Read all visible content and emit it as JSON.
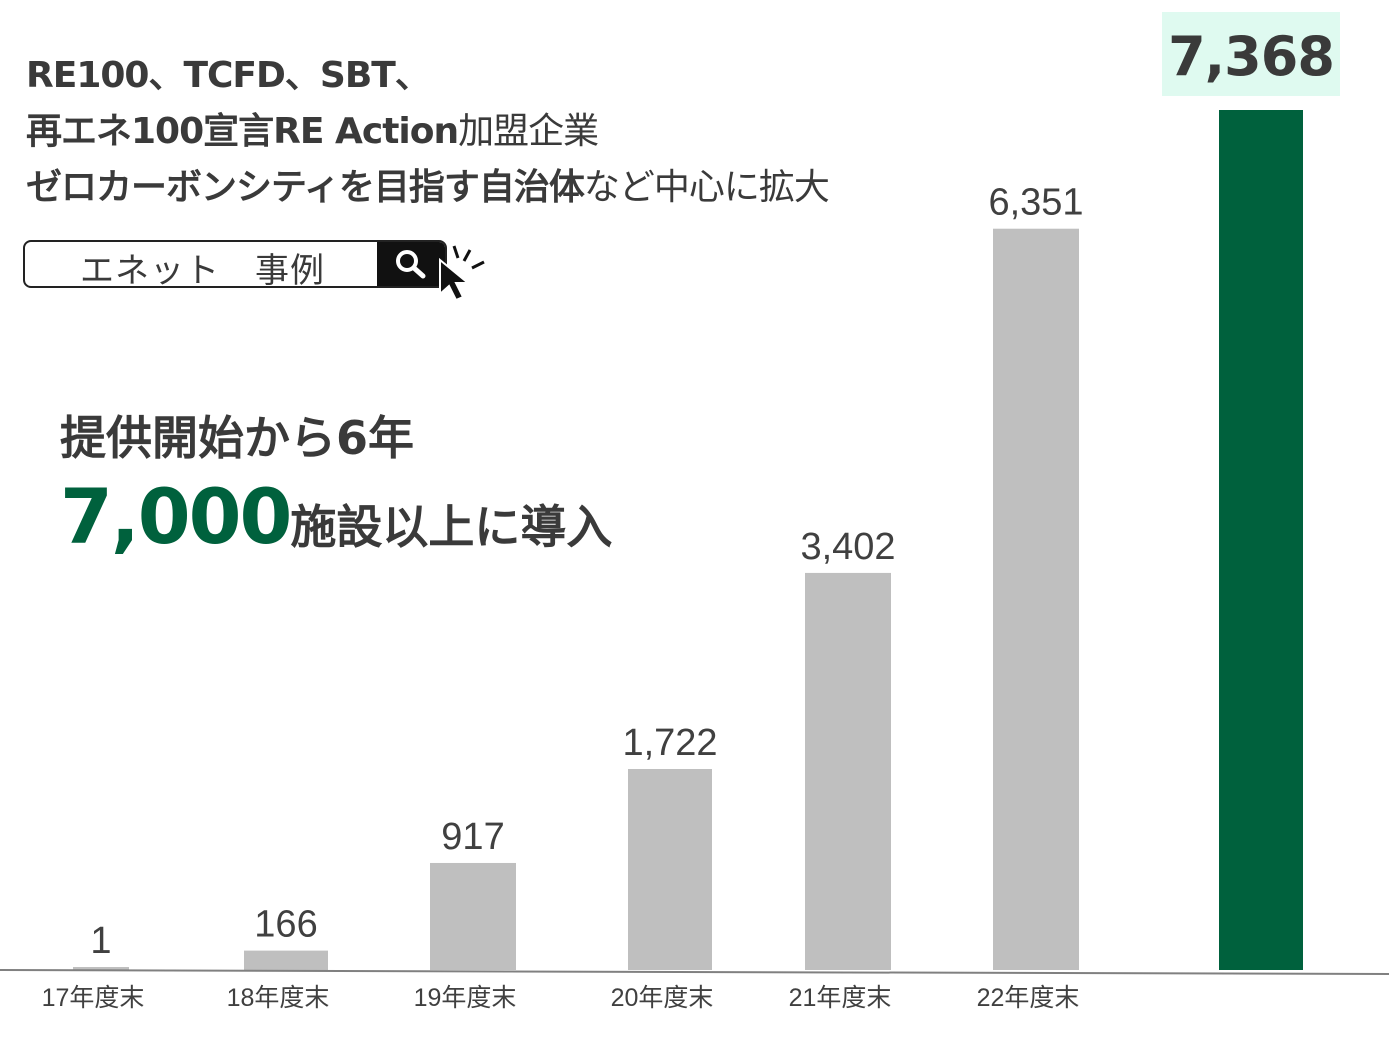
{
  "headline": {
    "line1": "RE100、TCFD、SBT、",
    "line2_bold": "再エネ100宣言RE Action",
    "line2_light": "加盟企業",
    "line3_bold": "ゼロカーボンシティを目指す自治体",
    "line3_light": "など中心に拡大"
  },
  "search": {
    "text": "エネット　事例",
    "button_icon": "search-icon",
    "cursor_icon": "cursor-click-icon"
  },
  "subheading": {
    "line1": "提供開始から6年",
    "big_number": "7,000",
    "line2_rest": "施設以上に導入"
  },
  "highlight_value": "7,368",
  "colors": {
    "bar_gray": "#bfbfbf",
    "bar_highlight": "#00613d",
    "highlight_bg": "#dffaf0",
    "text": "#404040"
  },
  "chart_data": {
    "type": "bar",
    "categories": [
      "17年度末",
      "18年度末",
      "19年度末",
      "20年度末",
      "21年度末",
      "22年度末",
      ""
    ],
    "values": [
      1,
      166,
      917,
      1722,
      3402,
      6351,
      7368
    ],
    "value_labels": [
      "1",
      "166",
      "917",
      "1,722",
      "3,402",
      "6,351",
      "7,368"
    ],
    "highlight_index": 6,
    "ylim": [
      0,
      7500
    ],
    "grid": false,
    "legend": "none"
  }
}
